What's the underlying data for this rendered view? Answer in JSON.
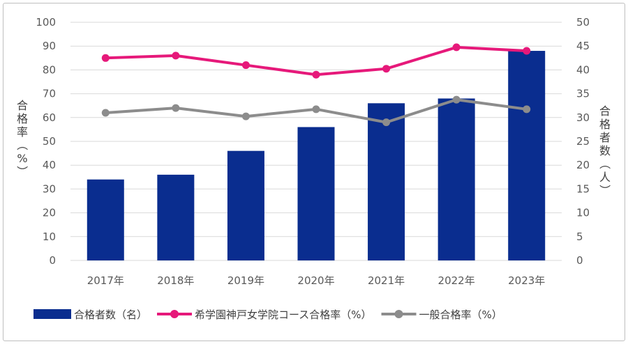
{
  "chart_data": {
    "type": "bar",
    "categories": [
      "2017年",
      "2018年",
      "2019年",
      "2020年",
      "2021年",
      "2022年",
      "2023年"
    ],
    "y_left": {
      "label": "合格率（%）",
      "ylim": [
        0,
        100
      ],
      "ticks": [
        0,
        10,
        20,
        30,
        40,
        50,
        60,
        70,
        80,
        90,
        100
      ]
    },
    "y_right": {
      "label": "合格者数（人）",
      "ylim": [
        0,
        50
      ],
      "ticks": [
        0,
        5,
        10,
        15,
        20,
        25,
        30,
        35,
        40,
        45,
        50
      ]
    },
    "series": [
      {
        "name": "合格者数（名）",
        "type": "bar",
        "axis": "right",
        "color": "#0a2d8f",
        "values": [
          17,
          18,
          23,
          28,
          33,
          34,
          44
        ]
      },
      {
        "name": "希学園神戸女学院コース合格率（%）",
        "type": "line",
        "axis": "left",
        "color": "#e6197a",
        "values": [
          85,
          86,
          82,
          78,
          80.5,
          89.5,
          88
        ]
      },
      {
        "name": "一般合格率（%）",
        "type": "line",
        "axis": "left",
        "color": "#8c8c8c",
        "values": [
          62,
          64,
          60.5,
          63.5,
          58,
          67.5,
          63.5
        ]
      }
    ],
    "grid": true,
    "legend_position": "bottom"
  }
}
